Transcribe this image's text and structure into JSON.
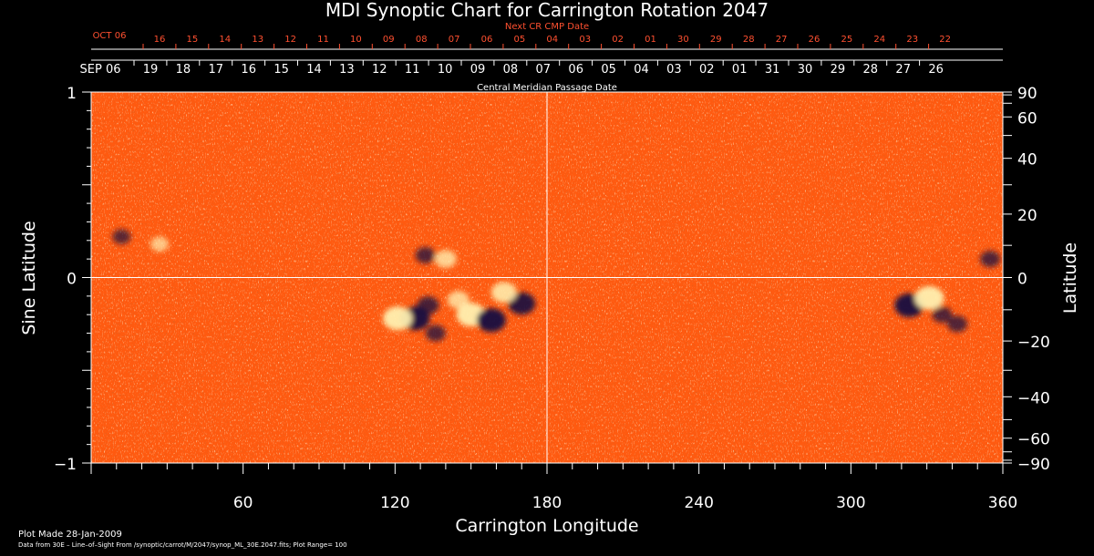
{
  "chart_data": {
    "type": "heatmap",
    "title": "MDI Synoptic Chart for Carrington Rotation 2047",
    "xlabel": "Carrington Longitude",
    "ylabel_left": "Sine Latitude",
    "ylabel_right": "Latitude",
    "top_label_next": "Next CR CMP Date",
    "top_label_cmp": "Central Meridian Passage Date",
    "xlim": [
      0,
      360
    ],
    "ylim": [
      -1,
      1
    ],
    "x_ticks": [
      60,
      120,
      180,
      240,
      300,
      360
    ],
    "y_left_ticks": [
      {
        "value": 1,
        "label": "1"
      },
      {
        "value": 0,
        "label": "0"
      },
      {
        "value": -1,
        "label": "−1"
      }
    ],
    "y_right_ticks": [
      {
        "value": 90,
        "label": "90"
      },
      {
        "value": 60,
        "label": "60"
      },
      {
        "value": 40,
        "label": "40"
      },
      {
        "value": 20,
        "label": "20"
      },
      {
        "value": 0,
        "label": "0"
      },
      {
        "value": -20,
        "label": "−20"
      },
      {
        "value": -40,
        "label": "−40"
      },
      {
        "value": -60,
        "label": "−60"
      },
      {
        "value": -90,
        "label": "−90"
      }
    ],
    "cmp_dates": [
      "19",
      "18",
      "17",
      "16",
      "15",
      "14",
      "13",
      "12",
      "11",
      "10",
      "09",
      "08",
      "07",
      "06",
      "05",
      "04",
      "03",
      "02",
      "01",
      "31",
      "30",
      "29",
      "28",
      "27",
      "26"
    ],
    "cmp_month": "SEP 06",
    "next_cr_dates": [
      "16",
      "15",
      "14",
      "13",
      "12",
      "11",
      "10",
      "09",
      "08",
      "07",
      "06",
      "05",
      "04",
      "03",
      "02",
      "01",
      "30",
      "29",
      "28",
      "27",
      "26",
      "25",
      "24",
      "23",
      "22"
    ],
    "next_cr_month": "OCT 06",
    "colors": {
      "background": "#ff5a10",
      "positive": "#fff0b0",
      "negative": "#180c40"
    },
    "plot_range": 100,
    "active_regions": [
      {
        "lon": 128,
        "sinlat": -0.22,
        "polarity": "negative",
        "strength": 1.0
      },
      {
        "lon": 121,
        "sinlat": -0.22,
        "polarity": "positive",
        "strength": 1.0
      },
      {
        "lon": 133,
        "sinlat": -0.15,
        "polarity": "negative",
        "strength": 0.6
      },
      {
        "lon": 136,
        "sinlat": -0.3,
        "polarity": "negative",
        "strength": 0.5
      },
      {
        "lon": 150,
        "sinlat": -0.2,
        "polarity": "positive",
        "strength": 1.0
      },
      {
        "lon": 158,
        "sinlat": -0.23,
        "polarity": "negative",
        "strength": 1.0
      },
      {
        "lon": 170,
        "sinlat": -0.14,
        "polarity": "negative",
        "strength": 0.9
      },
      {
        "lon": 163,
        "sinlat": -0.08,
        "polarity": "positive",
        "strength": 0.8
      },
      {
        "lon": 145,
        "sinlat": -0.12,
        "polarity": "positive",
        "strength": 0.6
      },
      {
        "lon": 140,
        "sinlat": 0.1,
        "polarity": "positive",
        "strength": 0.6
      },
      {
        "lon": 132,
        "sinlat": 0.12,
        "polarity": "negative",
        "strength": 0.5
      },
      {
        "lon": 323,
        "sinlat": -0.15,
        "polarity": "negative",
        "strength": 1.0
      },
      {
        "lon": 331,
        "sinlat": -0.11,
        "polarity": "positive",
        "strength": 1.0
      },
      {
        "lon": 336,
        "sinlat": -0.2,
        "polarity": "negative",
        "strength": 0.5
      },
      {
        "lon": 342,
        "sinlat": -0.25,
        "polarity": "negative",
        "strength": 0.5
      },
      {
        "lon": 355,
        "sinlat": 0.1,
        "polarity": "negative",
        "strength": 0.5
      },
      {
        "lon": 12,
        "sinlat": 0.22,
        "polarity": "negative",
        "strength": 0.4
      },
      {
        "lon": 27,
        "sinlat": 0.18,
        "polarity": "positive",
        "strength": 0.4
      }
    ]
  },
  "footer": {
    "plot_made": "Plot Made 28-Jan-2009",
    "data_source": "Data from 30E – Line–of–Sight From /synoptic/carrot/M/2047/synop_ML_30E.2047.fits; Plot Range= 100"
  }
}
